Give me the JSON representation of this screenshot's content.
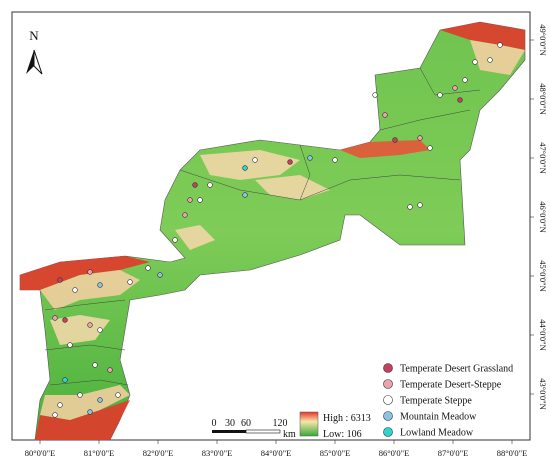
{
  "north_label": "N",
  "longitude_labels": [
    "80°0'0\"E",
    "81°0'0\"E",
    "82°0'0\"E",
    "83°0'0\"E",
    "84°0'0\"E",
    "85°0'0\"E",
    "86°0'0\"E",
    "87°0'0\"E",
    "88°0'0\"E"
  ],
  "latitude_labels": [
    "49°0'0\"N",
    "48°0'0\"N",
    "47°0'0\"N",
    "46°0'0\"N",
    "45°0'0\"N",
    "44°0'0\"N",
    "43°0'0\"N"
  ],
  "elevation_legend": {
    "high": "High : 6313",
    "low": "Low: 106"
  },
  "scale_bar": {
    "labels": [
      "0",
      "30",
      "60",
      "120"
    ],
    "unit": "km"
  },
  "legend": [
    {
      "label": "Temperate Desert Grassland",
      "color": "#c4405c"
    },
    {
      "label": "Temperate Desert-Steppe",
      "color": "#eba3ad"
    },
    {
      "label": "Temperate Steppe",
      "color": "#ffffff"
    },
    {
      "label": "Mountain Meadow",
      "color": "#8cc3e3"
    },
    {
      "label": "Lowland Meadow",
      "color": "#2fd3cf"
    }
  ]
}
